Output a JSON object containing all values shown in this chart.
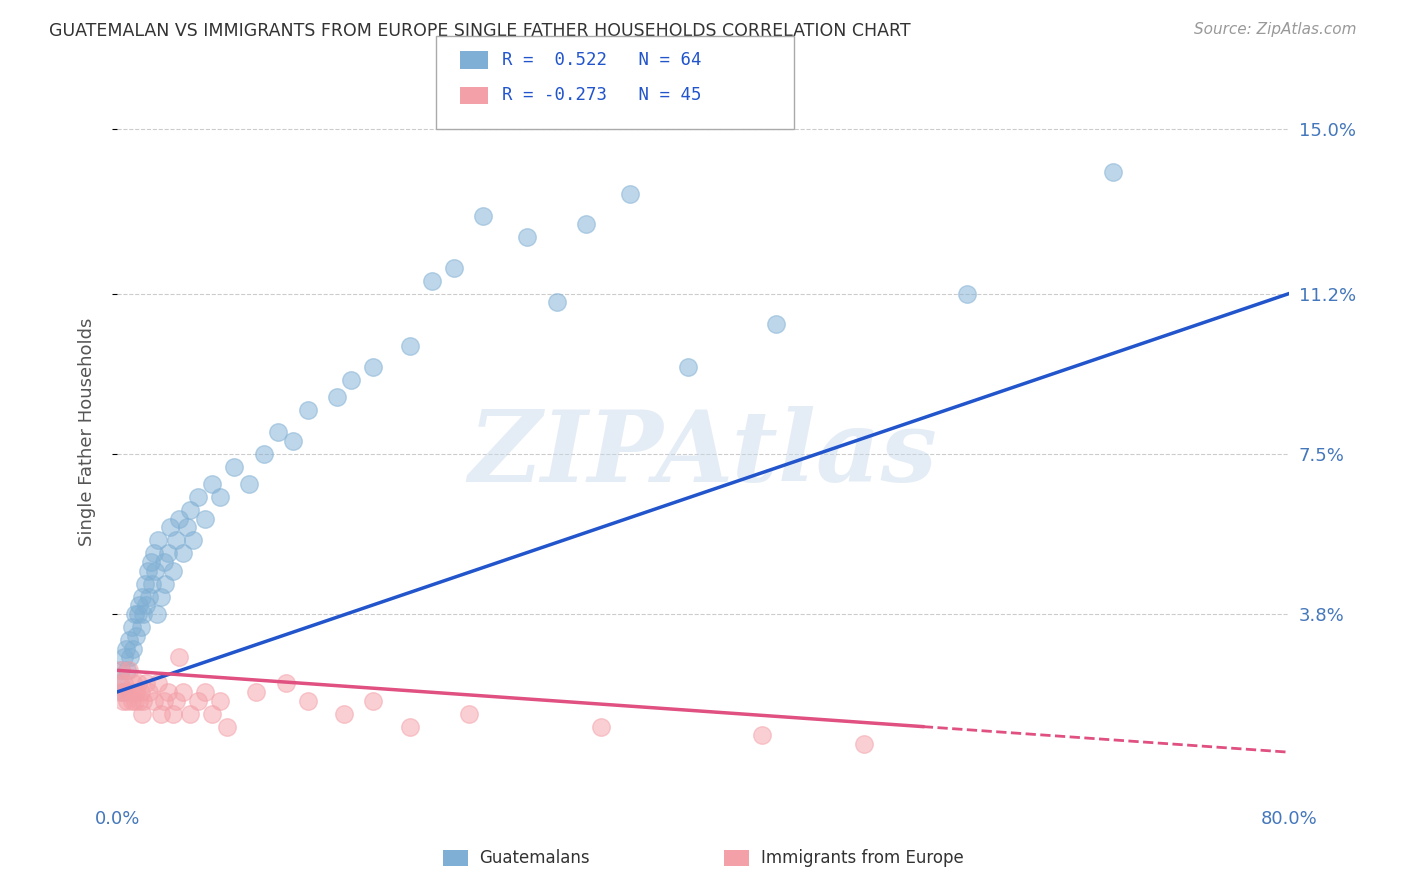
{
  "title": "GUATEMALAN VS IMMIGRANTS FROM EUROPE SINGLE FATHER HOUSEHOLDS CORRELATION CHART",
  "source": "Source: ZipAtlas.com",
  "ylabel": "Single Father Households",
  "series1_name": "Guatemalans",
  "series2_name": "Immigrants from Europe",
  "series1_color": "#7fafd4",
  "series2_color": "#f4a0a8",
  "series1_line_color": "#2255cc",
  "series2_line_color": "#e05080",
  "series1_R": "0.522",
  "series1_N": "64",
  "series2_R": "-0.273",
  "series2_N": "45",
  "xlim": [
    0.0,
    0.8
  ],
  "ylim": [
    -0.005,
    0.165
  ],
  "yticks": [
    0.038,
    0.075,
    0.112,
    0.15
  ],
  "ytick_labels": [
    "3.8%",
    "7.5%",
    "11.2%",
    "15.0%"
  ],
  "xticks": [
    0.0,
    0.8
  ],
  "xtick_labels": [
    "0.0%",
    "80.0%"
  ],
  "watermark": "ZIPAtlas",
  "background_color": "#ffffff",
  "grid_color": "#cccccc",
  "title_color": "#333333",
  "axis_label_color": "#555555",
  "tick_color": "#4477bb",
  "series1_points": [
    [
      0.002,
      0.022
    ],
    [
      0.003,
      0.025
    ],
    [
      0.004,
      0.02
    ],
    [
      0.005,
      0.028
    ],
    [
      0.006,
      0.03
    ],
    [
      0.007,
      0.025
    ],
    [
      0.008,
      0.032
    ],
    [
      0.009,
      0.028
    ],
    [
      0.01,
      0.035
    ],
    [
      0.011,
      0.03
    ],
    [
      0.012,
      0.038
    ],
    [
      0.013,
      0.033
    ],
    [
      0.014,
      0.038
    ],
    [
      0.015,
      0.04
    ],
    [
      0.016,
      0.035
    ],
    [
      0.017,
      0.042
    ],
    [
      0.018,
      0.038
    ],
    [
      0.019,
      0.045
    ],
    [
      0.02,
      0.04
    ],
    [
      0.021,
      0.048
    ],
    [
      0.022,
      0.042
    ],
    [
      0.023,
      0.05
    ],
    [
      0.024,
      0.045
    ],
    [
      0.025,
      0.052
    ],
    [
      0.026,
      0.048
    ],
    [
      0.027,
      0.038
    ],
    [
      0.028,
      0.055
    ],
    [
      0.03,
      0.042
    ],
    [
      0.032,
      0.05
    ],
    [
      0.033,
      0.045
    ],
    [
      0.035,
      0.052
    ],
    [
      0.036,
      0.058
    ],
    [
      0.038,
      0.048
    ],
    [
      0.04,
      0.055
    ],
    [
      0.042,
      0.06
    ],
    [
      0.045,
      0.052
    ],
    [
      0.048,
      0.058
    ],
    [
      0.05,
      0.062
    ],
    [
      0.052,
      0.055
    ],
    [
      0.055,
      0.065
    ],
    [
      0.06,
      0.06
    ],
    [
      0.065,
      0.068
    ],
    [
      0.07,
      0.065
    ],
    [
      0.08,
      0.072
    ],
    [
      0.09,
      0.068
    ],
    [
      0.1,
      0.075
    ],
    [
      0.11,
      0.08
    ],
    [
      0.12,
      0.078
    ],
    [
      0.13,
      0.085
    ],
    [
      0.15,
      0.088
    ],
    [
      0.16,
      0.092
    ],
    [
      0.175,
      0.095
    ],
    [
      0.2,
      0.1
    ],
    [
      0.215,
      0.115
    ],
    [
      0.23,
      0.118
    ],
    [
      0.25,
      0.13
    ],
    [
      0.28,
      0.125
    ],
    [
      0.3,
      0.11
    ],
    [
      0.32,
      0.128
    ],
    [
      0.35,
      0.135
    ],
    [
      0.39,
      0.095
    ],
    [
      0.45,
      0.105
    ],
    [
      0.58,
      0.112
    ],
    [
      0.68,
      0.14
    ]
  ],
  "series2_points": [
    [
      0.001,
      0.022
    ],
    [
      0.002,
      0.02
    ],
    [
      0.003,
      0.025
    ],
    [
      0.004,
      0.018
    ],
    [
      0.005,
      0.022
    ],
    [
      0.006,
      0.02
    ],
    [
      0.007,
      0.018
    ],
    [
      0.008,
      0.025
    ],
    [
      0.009,
      0.02
    ],
    [
      0.01,
      0.018
    ],
    [
      0.011,
      0.022
    ],
    [
      0.012,
      0.018
    ],
    [
      0.013,
      0.02
    ],
    [
      0.014,
      0.022
    ],
    [
      0.015,
      0.018
    ],
    [
      0.016,
      0.02
    ],
    [
      0.017,
      0.015
    ],
    [
      0.018,
      0.018
    ],
    [
      0.02,
      0.022
    ],
    [
      0.022,
      0.02
    ],
    [
      0.025,
      0.018
    ],
    [
      0.028,
      0.022
    ],
    [
      0.03,
      0.015
    ],
    [
      0.032,
      0.018
    ],
    [
      0.035,
      0.02
    ],
    [
      0.038,
      0.015
    ],
    [
      0.04,
      0.018
    ],
    [
      0.042,
      0.028
    ],
    [
      0.045,
      0.02
    ],
    [
      0.05,
      0.015
    ],
    [
      0.055,
      0.018
    ],
    [
      0.06,
      0.02
    ],
    [
      0.065,
      0.015
    ],
    [
      0.07,
      0.018
    ],
    [
      0.075,
      0.012
    ],
    [
      0.095,
      0.02
    ],
    [
      0.115,
      0.022
    ],
    [
      0.13,
      0.018
    ],
    [
      0.155,
      0.015
    ],
    [
      0.175,
      0.018
    ],
    [
      0.2,
      0.012
    ],
    [
      0.24,
      0.015
    ],
    [
      0.33,
      0.012
    ],
    [
      0.44,
      0.01
    ],
    [
      0.51,
      0.008
    ]
  ],
  "series1_regline": [
    [
      0.0,
      0.02
    ],
    [
      0.8,
      0.112
    ]
  ],
  "series2_regline": [
    [
      0.0,
      0.025
    ],
    [
      0.55,
      0.012
    ]
  ]
}
